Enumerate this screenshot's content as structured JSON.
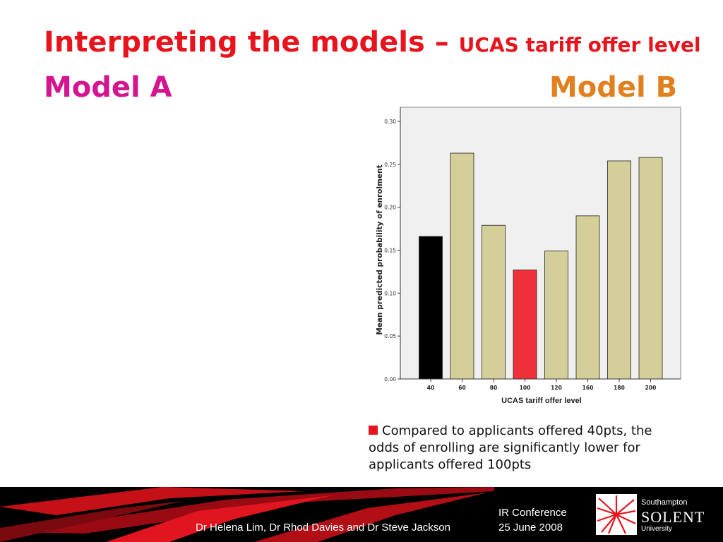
{
  "slide": {
    "title": "Interpreting the models –",
    "subtitle": "UCAS tariff offer level",
    "model_a": "Model A",
    "model_b": "Model B",
    "note": "Compared to applicants offered 40pts, the odds of enrolling are significantly lower for applicants offered 100pts"
  },
  "footer": {
    "authors": "Dr Helena Lim, Dr Rhod Davies and Dr Steve Jackson",
    "conference": "IR Conference",
    "date": "25 June 2008",
    "logo_city": "Southampton",
    "logo_name": "SOLENT",
    "logo_uni": "University"
  },
  "colors": {
    "title": "#e8141d",
    "model_a": "#d4158f",
    "model_b": "#e27f1f",
    "bar_default": "#d4cf98",
    "bar_reference": "#000000",
    "bar_highlight": "#ef3038",
    "plot_background": "#f0f0f0"
  },
  "chart_data": {
    "type": "bar",
    "categories": [
      "40",
      "60",
      "80",
      "100",
      "120",
      "160",
      "180",
      "200"
    ],
    "values": [
      0.166,
      0.263,
      0.179,
      0.127,
      0.149,
      0.19,
      0.254,
      0.258
    ],
    "bar_colors": [
      "#000000",
      "#d4cf98",
      "#d4cf98",
      "#ef3038",
      "#d4cf98",
      "#d4cf98",
      "#d4cf98",
      "#d4cf98"
    ],
    "xlabel": "UCAS tariff offer level",
    "ylabel": "Mean predicted probability of enrolment",
    "ylim": [
      0,
      0.3
    ],
    "yticks": [
      "0.00",
      "0.05",
      "0.10",
      "0.15",
      "0.20",
      "0.25",
      "0.30"
    ],
    "grid": false,
    "legend": "none"
  }
}
